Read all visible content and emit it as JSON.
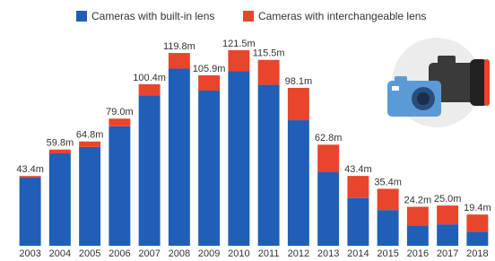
{
  "chart_data": {
    "type": "stacked-bar",
    "categories": [
      "2003",
      "2004",
      "2005",
      "2006",
      "2007",
      "2008",
      "2009",
      "2010",
      "2011",
      "2012",
      "2013",
      "2014",
      "2015",
      "2016",
      "2017",
      "2018"
    ],
    "series": [
      {
        "name": "Cameras with built-in lens",
        "color": "#1f5fb8",
        "values": [
          42.5,
          57.4,
          61.4,
          74.3,
          93.4,
          110.1,
          96.4,
          108.4,
          100.0,
          78.0,
          45.7,
          29.6,
          22.2,
          12.6,
          13.3,
          8.6
        ]
      },
      {
        "name": "Cameras with interchangeable lens",
        "color": "#e8452c",
        "values": [
          0.9,
          2.4,
          3.4,
          4.7,
          7.0,
          9.7,
          9.5,
          13.1,
          15.5,
          20.1,
          17.1,
          13.8,
          13.2,
          11.6,
          11.7,
          10.8
        ]
      }
    ],
    "totals": [
      43.4,
      59.8,
      64.8,
      79.0,
      100.4,
      119.8,
      105.9,
      121.5,
      115.5,
      98.1,
      62.8,
      43.4,
      35.4,
      24.2,
      25.0,
      19.4
    ],
    "total_labels": [
      "43.4m",
      "59.8m",
      "64.8m",
      "79.0m",
      "100.4m",
      "119.8m",
      "105.9m",
      "121.5m",
      "115.5m",
      "98.1m",
      "62.8m",
      "43.4m",
      "35.4m",
      "24.2m",
      "25.0m",
      "19.4m"
    ]
  }
}
